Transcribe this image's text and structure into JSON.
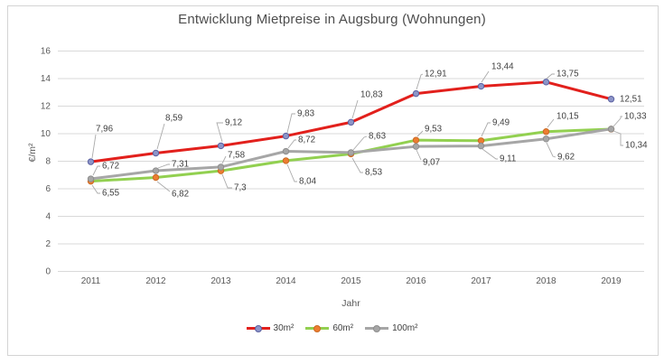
{
  "title": "Entwicklung Mietpreise in Augsburg (Wohnungen)",
  "chart_data": {
    "type": "line",
    "title": "Entwicklung Mietpreise in Augsburg (Wohnungen)",
    "xlabel": "Jahr",
    "ylabel": "€/m²",
    "x": [
      "2011",
      "2012",
      "2013",
      "2014",
      "2015",
      "2016",
      "2017",
      "2018",
      "2019"
    ],
    "ylim": [
      0,
      16
    ],
    "yticks": [
      "0",
      "2",
      "4",
      "6",
      "8",
      "10",
      "12",
      "14",
      "16"
    ],
    "grid": "horizontal",
    "legend_position": "bottom",
    "colors": {
      "gridline": "#d9d9d9",
      "tick_text": "#595959",
      "label_text": "#404040",
      "leader_line": "#ababab"
    },
    "series": [
      {
        "name": "30m²",
        "color": "#e2201c",
        "marker_fill": "#8d95c8",
        "marker_stroke": "#5a60a0",
        "values": [
          7.96,
          8.59,
          9.12,
          9.83,
          10.83,
          12.91,
          13.44,
          13.75,
          12.51
        ],
        "labels": [
          "7,96",
          "8,59",
          "9,12",
          "9,83",
          "10,83",
          "12,91",
          "13,44",
          "13,75",
          "12,51"
        ]
      },
      {
        "name": "60m²",
        "color": "#92d050",
        "marker_fill": "#ed7d31",
        "marker_stroke": "#c96a24",
        "values": [
          6.55,
          6.82,
          7.3,
          8.04,
          8.53,
          9.53,
          9.49,
          10.15,
          10.33
        ],
        "labels": [
          "6,55",
          "6,82",
          "7,3",
          "8,04",
          "8,53",
          "9,53",
          "9,49",
          "10,15",
          "10,33"
        ]
      },
      {
        "name": "100m²",
        "color": "#a6a6a6",
        "marker_fill": "#a6a6a6",
        "marker_stroke": "#8e8e8e",
        "values": [
          6.72,
          7.31,
          7.58,
          8.72,
          8.63,
          9.07,
          9.11,
          9.62,
          10.34
        ],
        "labels": [
          "6,72",
          "7,31",
          "7,58",
          "8,72",
          "8,63",
          "9,07",
          "9,11",
          "9,62",
          "10,34"
        ]
      }
    ]
  }
}
